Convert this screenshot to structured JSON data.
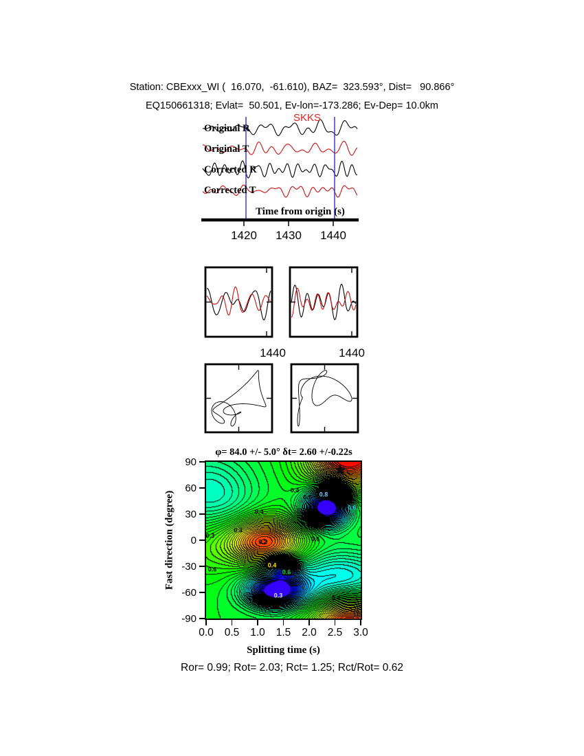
{
  "header": {
    "line1": "Station: CBExxx_WI (  16.070,  -61.610), BAZ=  323.593°, Dist=   90.866°",
    "line2": "EQ150661318; Evlat=  50.501, Ev-lon=-173.286; Ev-Dep= 10.0km"
  },
  "waveform_panel": {
    "phase_label": "SKKS",
    "trace_labels": [
      "Original R",
      "Original T",
      "Corrected R",
      "Corrected T"
    ],
    "axis_label": "Time from origin (s)",
    "tick_labels": [
      "1420",
      "1430",
      "1440"
    ]
  },
  "zoom_panels": {
    "tick_labels": [
      "1440",
      "1440"
    ]
  },
  "footer": "Ror= 0.99; Rot= 2.03; Rct= 1.25; Rct/Rot= 0.62",
  "colors": {
    "trace_black": "#000000",
    "trace_red": "#cc1010",
    "window_line": "#3c3cd8",
    "phase_label": "#dd2222",
    "star": "#000000"
  },
  "chart_data": {
    "type": "heatmap",
    "title": "φ= 84.0 +/- 5.0° δt= 2.60 +/-0.22s",
    "xlabel": "Splitting time (s)",
    "ylabel": "Fast direction (degree)",
    "xlim": [
      0.0,
      3.0
    ],
    "ylim": [
      -90,
      90
    ],
    "xticks": [
      "0.0",
      "0.5",
      "1.0",
      "1.5",
      "2.0",
      "2.5",
      "3.0"
    ],
    "yticks": [
      "90",
      "60",
      "30",
      "0",
      "-30",
      "-60",
      "-90"
    ],
    "grid": false,
    "legend": "none",
    "solution": {
      "phi_deg": 84.0,
      "phi_err_deg": 5.0,
      "dt_s": 2.6,
      "dt_err_s": 0.22
    },
    "star": {
      "x": 2.6,
      "y": 84
    },
    "energy_minima": [
      {
        "x": 2.6,
        "y": 84,
        "level": "<0.2"
      },
      {
        "x": 1.1,
        "y": 0,
        "level": "0.2"
      }
    ],
    "energy_maxima": [
      {
        "x": 2.35,
        "y": 38
      },
      {
        "x": 1.35,
        "y": -58
      }
    ],
    "contour_labels": [
      {
        "v": "0.4",
        "x": 1.72,
        "y": 57
      },
      {
        "v": "0.6",
        "x": 1.97,
        "y": 49
      },
      {
        "v": "0.8",
        "x": 2.28,
        "y": 52,
        "c": "#6fc8ff"
      },
      {
        "v": "0.6",
        "x": 2.83,
        "y": 37,
        "c": "#19c8e6"
      },
      {
        "v": "0.4",
        "x": 1.03,
        "y": 32
      },
      {
        "v": "0.3",
        "x": 0.62,
        "y": 11
      },
      {
        "v": "0.2",
        "x": 1.1,
        "y": -2
      },
      {
        "v": "0.6",
        "x": 2.12,
        "y": 1
      },
      {
        "v": "0.3",
        "x": 0.08,
        "y": 5
      },
      {
        "v": "0.4",
        "x": 1.28,
        "y": -29,
        "c": "#ffe100",
        "bg": "#000000"
      },
      {
        "v": "0.6",
        "x": 1.56,
        "y": -37,
        "c": "#19d24b",
        "bg": "#000000"
      },
      {
        "v": "0.6",
        "x": 0.12,
        "y": -34
      },
      {
        "v": "0.3",
        "x": 1.4,
        "y": -64,
        "c": "#cfe6ff"
      },
      {
        "v": "0.4",
        "x": 2.52,
        "y": -67
      }
    ]
  }
}
